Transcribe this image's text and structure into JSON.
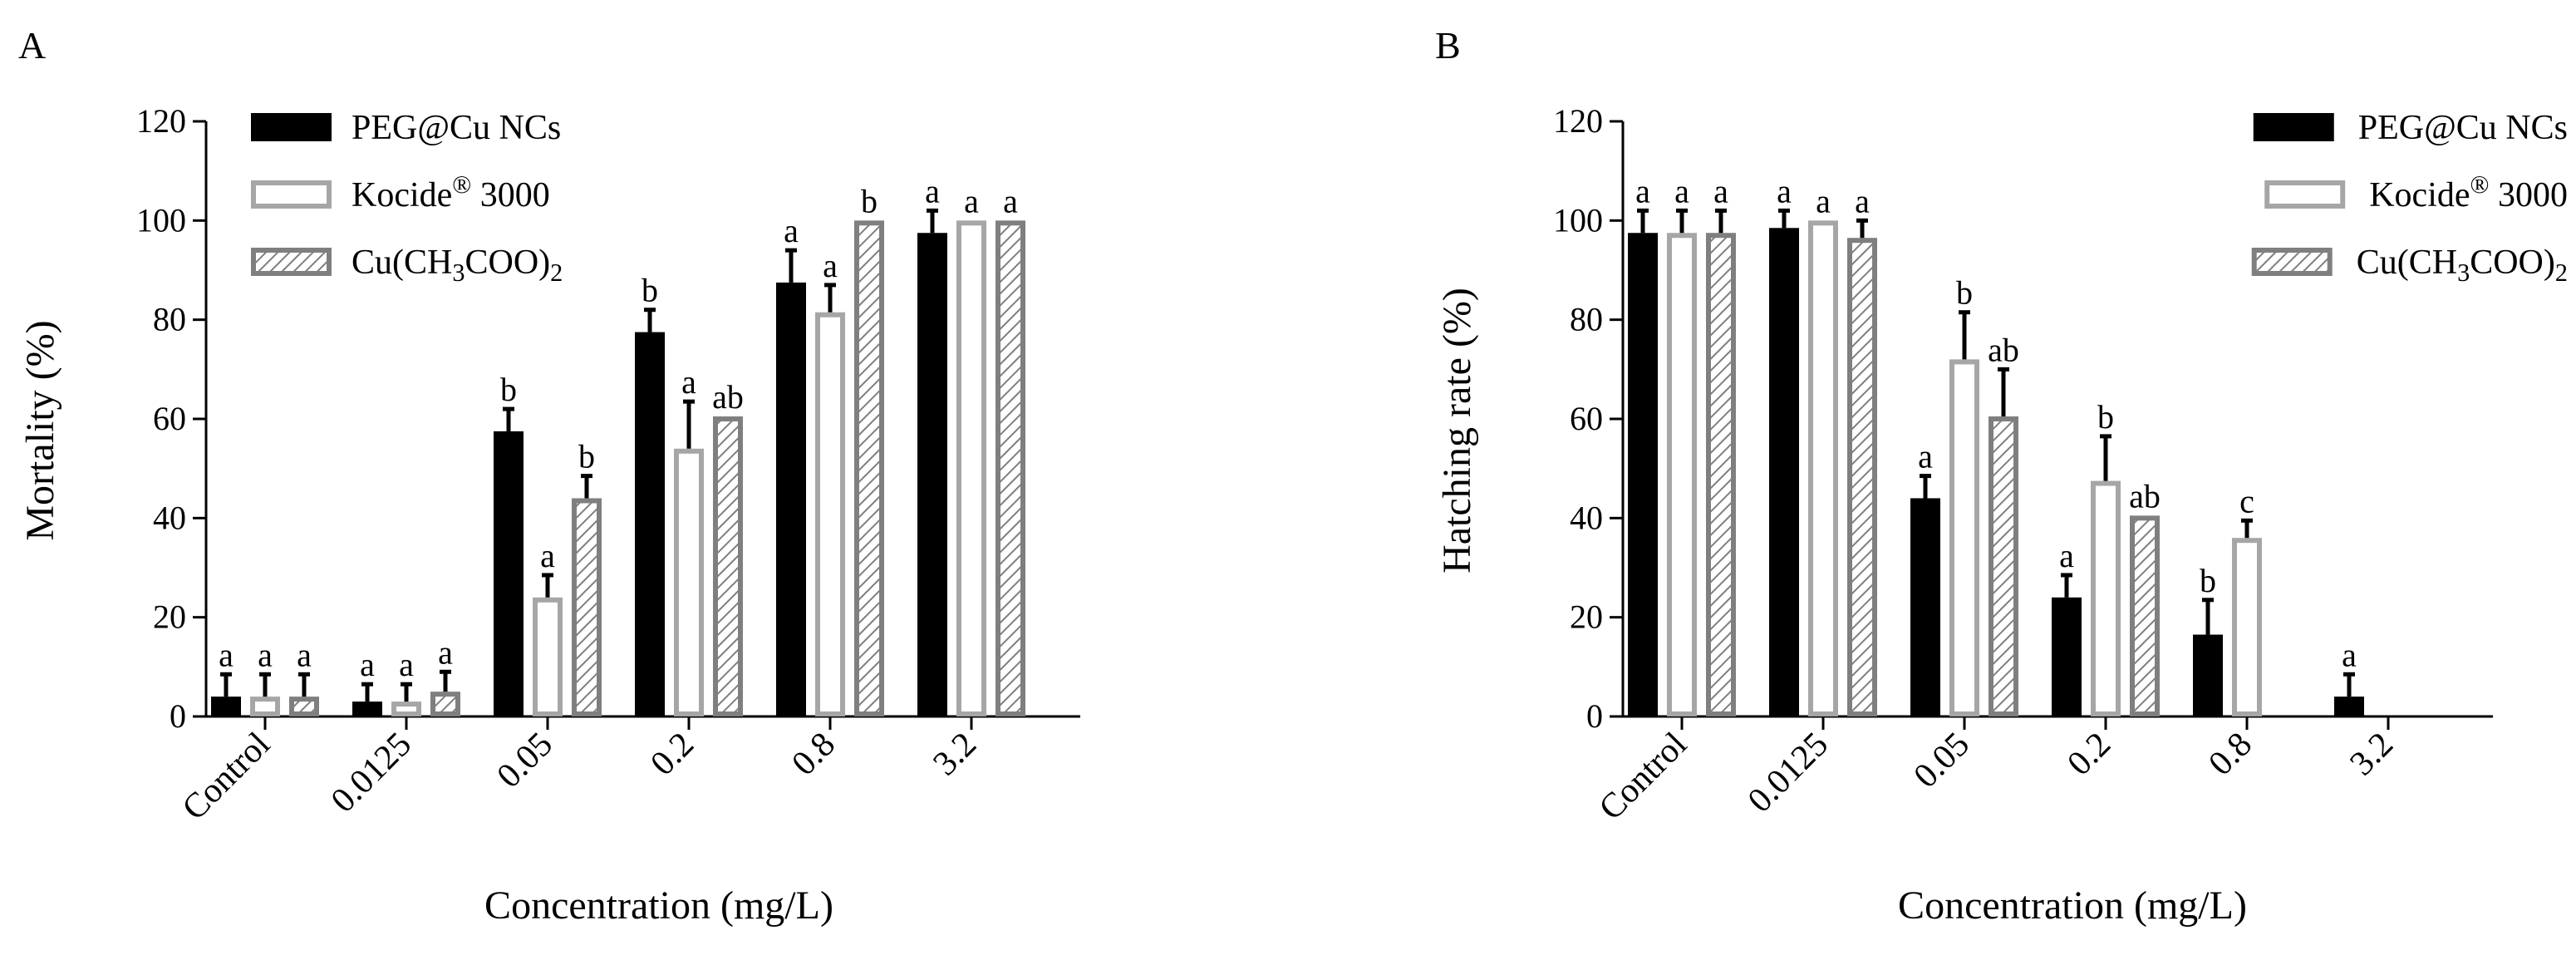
{
  "chart_data": [
    {
      "panel_label": "A",
      "type": "bar",
      "categories": [
        "Control",
        "0.0125",
        "0.05",
        "0.2",
        "0.8",
        "3.2"
      ],
      "xlabel": "Concentration (mg/L)",
      "ylabel": "Mortality (%)",
      "ylim": [
        0,
        120
      ],
      "yticks": [
        0,
        20,
        40,
        60,
        80,
        100,
        120
      ],
      "legend_position": "top-left",
      "series": [
        {
          "name": "PEG@Cu NCs",
          "style": "solid-black",
          "values": [
            4,
            3,
            57.5,
            77.5,
            87.5,
            97.5
          ],
          "errors": [
            4.5,
            3.5,
            4.5,
            4.5,
            6.5,
            4.5
          ],
          "letters": [
            "a",
            "a",
            "b",
            "b",
            "a",
            "a"
          ]
        },
        {
          "name": "Kocide® 3000",
          "style": "open-gray",
          "values": [
            4,
            3,
            24,
            54,
            81.5,
            100
          ],
          "errors": [
            4.5,
            3.5,
            4.5,
            9.5,
            5.5,
            0
          ],
          "letters": [
            "a",
            "a",
            "a",
            "a",
            "a",
            "a"
          ]
        },
        {
          "name": "Cu(CH3COO)2",
          "style": "hatched-gray",
          "values": [
            4,
            5,
            44,
            60.5,
            100,
            100
          ],
          "errors": [
            4.5,
            4,
            4.5,
            0,
            0,
            0
          ],
          "letters": [
            "a",
            "a",
            "b",
            "ab",
            "b",
            "a"
          ]
        }
      ]
    },
    {
      "panel_label": "B",
      "type": "bar",
      "categories": [
        "Control",
        "0.0125",
        "0.05",
        "0.2",
        "0.8",
        "3.2"
      ],
      "xlabel": "Concentration (mg/L)",
      "ylabel": "Hatching rate (%)",
      "ylim": [
        0,
        120
      ],
      "yticks": [
        0,
        20,
        40,
        60,
        80,
        100,
        120
      ],
      "legend_position": "top-right",
      "series": [
        {
          "name": "PEG@Cu NCs",
          "style": "solid-black",
          "values": [
            97.5,
            98.5,
            44,
            24,
            16.5,
            4
          ],
          "errors": [
            4.5,
            3.5,
            4.5,
            4.5,
            7,
            4.5
          ],
          "letters": [
            "a",
            "a",
            "a",
            "a",
            "b",
            "a"
          ]
        },
        {
          "name": "Kocide® 3000",
          "style": "open-gray",
          "values": [
            97.5,
            100,
            72,
            47.5,
            36,
            null
          ],
          "errors": [
            4.5,
            0,
            9.5,
            9,
            3.5,
            null
          ],
          "letters": [
            "a",
            "a",
            "b",
            "b",
            "c",
            null
          ]
        },
        {
          "name": "Cu(CH3COO)2",
          "style": "hatched-gray",
          "values": [
            97.5,
            96.5,
            60.5,
            40.5,
            null,
            null
          ],
          "errors": [
            4.5,
            3.5,
            9.5,
            0,
            null,
            null
          ],
          "letters": [
            "a",
            "a",
            "ab",
            "ab",
            null,
            null
          ]
        }
      ]
    }
  ]
}
